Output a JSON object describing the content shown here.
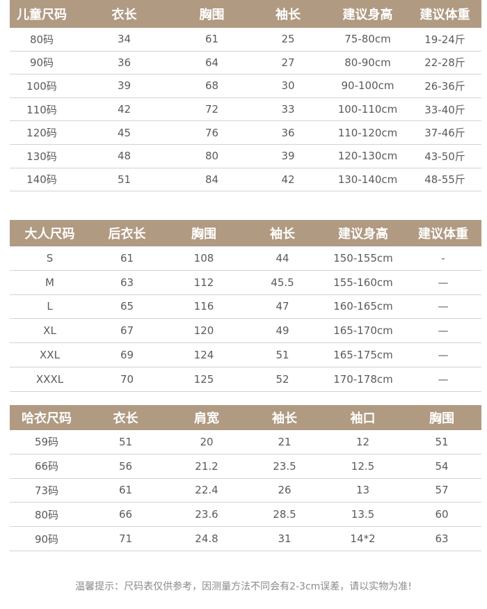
{
  "children_table": {
    "headers": [
      "儿童尺码",
      "衣长",
      "胸围",
      "袖长",
      "建议身高",
      "建议体重"
    ],
    "rows": [
      [
        "80码",
        "34",
        "61",
        "25",
        "75-80cm",
        "19-24斤"
      ],
      [
        "90码",
        "36",
        "64",
        "27",
        "80-90cm",
        "22-28斤"
      ],
      [
        "100码",
        "39",
        "68",
        "30",
        "90-100cm",
        "26-36斤"
      ],
      [
        "110码",
        "42",
        "72",
        "33",
        "100-110cm",
        "33-40斤"
      ],
      [
        "120码",
        "45",
        "76",
        "36",
        "110-120cm",
        "37-46斤"
      ],
      [
        "130码",
        "48",
        "80",
        "39",
        "120-130cm",
        "43-50斤"
      ],
      [
        "140码",
        "51",
        "84",
        "42",
        "130-140cm",
        "48-55斤"
      ]
    ]
  },
  "adult_table": {
    "headers": [
      "大人尺码",
      "后衣长",
      "胸围",
      "袖长",
      "建议身高",
      "建议体重"
    ],
    "rows": [
      [
        "S",
        "61",
        "108",
        "44",
        "150-155cm",
        "-"
      ],
      [
        "M",
        "63",
        "112",
        "45.5",
        "155-160cm",
        "—"
      ],
      [
        "L",
        "65",
        "116",
        "47",
        "160-165cm",
        "—"
      ],
      [
        "XL",
        "67",
        "120",
        "49",
        "165-170cm",
        "—"
      ],
      [
        "XXL",
        "69",
        "124",
        "51",
        "165-175cm",
        "—"
      ],
      [
        "XXXL",
        "70",
        "125",
        "52",
        "170-178cm",
        "—"
      ]
    ]
  },
  "romper_table": {
    "headers": [
      "哈衣尺码",
      "衣长",
      "肩宽",
      "袖长",
      "袖口",
      "胸围"
    ],
    "rows": [
      [
        "59码",
        "51",
        "20",
        "21",
        "12",
        "51"
      ],
      [
        "66码",
        "56",
        "21.2",
        "23.5",
        "12.5",
        "54"
      ],
      [
        "73码",
        "61",
        "22.4",
        "26",
        "13",
        "57"
      ],
      [
        "80码",
        "66",
        "23.6",
        "28.5",
        "13.5",
        "60"
      ],
      [
        "90码",
        "71",
        "24.8",
        "31",
        "14*2",
        "63"
      ]
    ]
  },
  "note": "温馨提示：尺码表仅供参考，因测量方法不同会有2-3cm误差，请以实物为准!",
  "colors": {
    "header_bg": "#b09a82",
    "header_text": "#ffffff",
    "row_divider": "#d9d2ca"
  }
}
